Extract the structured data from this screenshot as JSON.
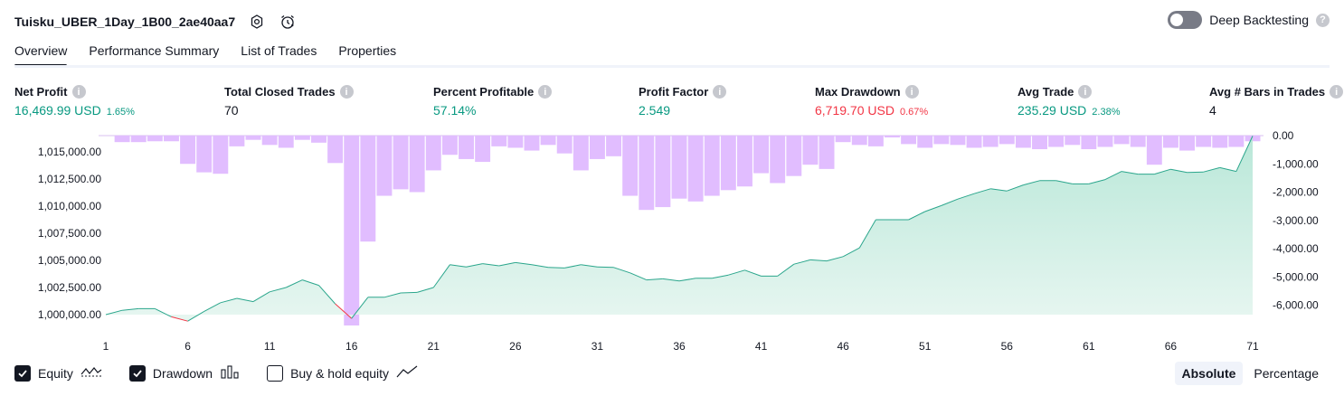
{
  "header": {
    "strategy_name": "Tuisku_UBER_1Day_1B00_2ae40aa7"
  },
  "deep_backtesting": {
    "label": "Deep Backtesting",
    "enabled": false,
    "help": "?"
  },
  "tabs": [
    {
      "label": "Overview",
      "active": true
    },
    {
      "label": "Performance Summary",
      "active": false
    },
    {
      "label": "List of Trades",
      "active": false
    },
    {
      "label": "Properties",
      "active": false
    }
  ],
  "metrics": {
    "net_profit": {
      "label": "Net Profit",
      "value": "16,469.99 USD",
      "pct": "1.65%"
    },
    "total_closed_trades": {
      "label": "Total Closed Trades",
      "value": "70"
    },
    "percent_profitable": {
      "label": "Percent Profitable",
      "value": "57.14%"
    },
    "profit_factor": {
      "label": "Profit Factor",
      "value": "2.549"
    },
    "max_drawdown": {
      "label": "Max Drawdown",
      "value": "6,719.70 USD",
      "pct": "0.67%"
    },
    "avg_trade": {
      "label": "Avg Trade",
      "value": "235.29 USD",
      "pct": "2.38%"
    },
    "avg_bars": {
      "label": "Avg # Bars in Trades",
      "value": "4"
    }
  },
  "colors": {
    "positive": "#089981",
    "negative": "#f23645",
    "drawdown_bar": "#e1bdff",
    "equity_fill": "#cdeee4",
    "equity_line": "#2ba68c"
  },
  "chart_data": {
    "type": "area",
    "x_ticks": [
      1,
      6,
      11,
      16,
      21,
      26,
      31,
      36,
      41,
      46,
      51,
      56,
      61,
      66,
      71
    ],
    "left_axis": {
      "ticks": [
        "1,015,000.00",
        "1,012,500.00",
        "1,010,000.00",
        "1,007,500.00",
        "1,005,000.00",
        "1,002,500.00",
        "1,000,000.00"
      ],
      "tick_values": [
        1015000,
        1012500,
        1010000,
        1007500,
        1005000,
        1002500,
        1000000
      ],
      "range": [
        999000,
        1016500
      ]
    },
    "right_axis": {
      "ticks": [
        "0.00",
        "-1,000.00",
        "-2,000.00",
        "-3,000.00",
        "-4,000.00",
        "-5,000.00",
        "-6,000.00"
      ],
      "tick_values": [
        0,
        -1000,
        -2000,
        -3000,
        -4000,
        -5000,
        -6000
      ],
      "range": [
        -6719.7,
        0
      ]
    },
    "series": [
      {
        "name": "Equity",
        "axis": "left",
        "x": [
          1,
          2,
          3,
          4,
          5,
          6,
          7,
          8,
          9,
          10,
          11,
          12,
          13,
          14,
          15,
          16,
          17,
          18,
          19,
          20,
          21,
          22,
          23,
          24,
          25,
          26,
          27,
          28,
          29,
          30,
          31,
          32,
          33,
          34,
          35,
          36,
          37,
          38,
          39,
          40,
          41,
          42,
          43,
          44,
          45,
          46,
          47,
          48,
          49,
          50,
          51,
          52,
          53,
          54,
          55,
          56,
          57,
          58,
          59,
          60,
          61,
          62,
          63,
          64,
          65,
          66,
          67,
          68,
          69,
          70,
          71
        ],
        "values": [
          1000000,
          1000400,
          1000550,
          1000550,
          999800,
          999400,
          1000300,
          1001100,
          1001500,
          1001200,
          1002100,
          1002500,
          1003200,
          1002700,
          1001000,
          999650,
          1001600,
          1001600,
          1002000,
          1002050,
          1002500,
          1004600,
          1004400,
          1004700,
          1004500,
          1004800,
          1004600,
          1004350,
          1004300,
          1004600,
          1004400,
          1004350,
          1003850,
          1003200,
          1003300,
          1003100,
          1003350,
          1003350,
          1003650,
          1004100,
          1003550,
          1003550,
          1004650,
          1005050,
          1004950,
          1005350,
          1006150,
          1008750,
          1008750,
          1008750,
          1009500,
          1010050,
          1010650,
          1011150,
          1011600,
          1011400,
          1011950,
          1012350,
          1012350,
          1012050,
          1012050,
          1012450,
          1013200,
          1012950,
          1012950,
          1013400,
          1013100,
          1013150,
          1013550,
          1013200,
          1016469.99
        ]
      },
      {
        "name": "Drawdown",
        "axis": "right",
        "x": [
          1,
          2,
          3,
          4,
          5,
          6,
          7,
          8,
          9,
          10,
          11,
          12,
          13,
          14,
          15,
          16,
          17,
          18,
          19,
          20,
          21,
          22,
          23,
          24,
          25,
          26,
          27,
          28,
          29,
          30,
          31,
          32,
          33,
          34,
          35,
          36,
          37,
          38,
          39,
          40,
          41,
          42,
          43,
          44,
          45,
          46,
          47,
          48,
          49,
          50,
          51,
          52,
          53,
          54,
          55,
          56,
          57,
          58,
          59,
          60,
          61,
          62,
          63,
          64,
          65,
          66,
          67,
          68,
          69,
          70,
          71
        ],
        "values": [
          0,
          -230,
          -230,
          -200,
          -200,
          -1000,
          -1300,
          -1350,
          -380,
          -150,
          -330,
          -430,
          -150,
          -250,
          -970,
          -6719.7,
          -3750,
          -2130,
          -1900,
          -2000,
          -1230,
          -680,
          -830,
          -930,
          -380,
          -430,
          -530,
          -330,
          -630,
          -1230,
          -830,
          -730,
          -2130,
          -2630,
          -2530,
          -2230,
          -2330,
          -2130,
          -1930,
          -1800,
          -1330,
          -1680,
          -1430,
          -1030,
          -1180,
          -230,
          -330,
          -380,
          -30,
          -300,
          -430,
          -300,
          -330,
          -430,
          -400,
          -300,
          -430,
          -480,
          -400,
          -330,
          -480,
          -400,
          -300,
          -400,
          -1030,
          -430,
          -530,
          -400,
          -430,
          -400,
          -200
        ]
      }
    ]
  },
  "legend": [
    {
      "label": "Equity",
      "checked": true
    },
    {
      "label": "Drawdown",
      "checked": true
    },
    {
      "label": "Buy & hold equity",
      "checked": false
    }
  ],
  "mode": {
    "absolute": "Absolute",
    "percentage": "Percentage"
  }
}
